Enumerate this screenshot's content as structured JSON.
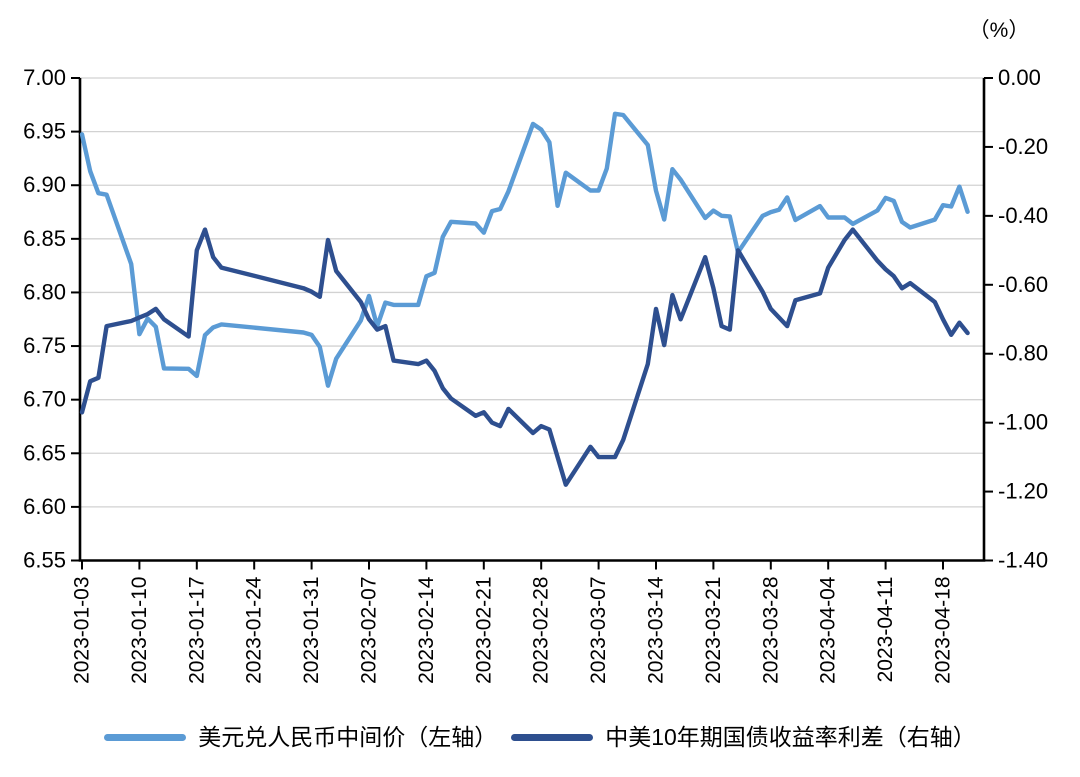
{
  "header": {
    "title": "",
    "unit_label": "（%）"
  },
  "legend": {
    "items": [
      {
        "label": "美元兑人民币中间价（左轴）",
        "color": "#5B9BD5"
      },
      {
        "label": "中美10年期国债收益率利差（右轴）",
        "color": "#2E4F8F"
      }
    ]
  },
  "chart_data": {
    "type": "line",
    "title": "",
    "xlabel": "",
    "ylabel_left": "",
    "ylabel_right": "（%）",
    "grid": true,
    "legend_position": "bottom",
    "x": [
      "2023-01-03",
      "2023-01-04",
      "2023-01-05",
      "2023-01-06",
      "2023-01-09",
      "2023-01-10",
      "2023-01-11",
      "2023-01-12",
      "2023-01-13",
      "2023-01-16",
      "2023-01-17",
      "2023-01-18",
      "2023-01-19",
      "2023-01-20",
      "2023-01-30",
      "2023-01-31",
      "2023-02-01",
      "2023-02-02",
      "2023-02-03",
      "2023-02-06",
      "2023-02-07",
      "2023-02-08",
      "2023-02-09",
      "2023-02-10",
      "2023-02-13",
      "2023-02-14",
      "2023-02-15",
      "2023-02-16",
      "2023-02-17",
      "2023-02-20",
      "2023-02-21",
      "2023-02-22",
      "2023-02-23",
      "2023-02-24",
      "2023-02-27",
      "2023-02-28",
      "2023-03-01",
      "2023-03-02",
      "2023-03-03",
      "2023-03-06",
      "2023-03-07",
      "2023-03-08",
      "2023-03-09",
      "2023-03-10",
      "2023-03-13",
      "2023-03-14",
      "2023-03-15",
      "2023-03-16",
      "2023-03-17",
      "2023-03-20",
      "2023-03-21",
      "2023-03-22",
      "2023-03-23",
      "2023-03-24",
      "2023-03-27",
      "2023-03-28",
      "2023-03-29",
      "2023-03-30",
      "2023-03-31",
      "2023-04-03",
      "2023-04-04",
      "2023-04-06",
      "2023-04-07",
      "2023-04-10",
      "2023-04-11",
      "2023-04-12",
      "2023-04-13",
      "2023-04-14",
      "2023-04-17",
      "2023-04-18",
      "2023-04-19",
      "2023-04-20",
      "2023-04-21"
    ],
    "series": [
      {
        "name": "美元兑人民币中间价（左轴）",
        "axis": "left",
        "color": "#5B9BD5",
        "values": [
          6.9475,
          6.9131,
          6.8926,
          6.8912,
          6.8265,
          6.7611,
          6.7756,
          6.768,
          6.7292,
          6.7288,
          6.7222,
          6.7602,
          6.7674,
          6.7702,
          6.7626,
          6.7604,
          6.7492,
          6.713,
          6.7382,
          6.7737,
          6.7967,
          6.7685,
          6.7905,
          6.7884,
          6.7884,
          6.8151,
          6.8183,
          6.8519,
          6.8659,
          6.8643,
          6.8557,
          6.8759,
          6.8778,
          6.8942,
          6.9572,
          6.9519,
          6.94,
          6.8808,
          6.9117,
          6.8951,
          6.8951,
          6.9156,
          6.9666,
          6.9655,
          6.9375,
          6.8949,
          6.868,
          6.9149,
          6.9052,
          6.8694,
          6.8763,
          6.8715,
          6.8709,
          6.8374,
          6.8714,
          6.8749,
          6.8771,
          6.8886,
          6.8676,
          6.8805,
          6.8699,
          6.8699,
          6.8639,
          6.8764,
          6.8882,
          6.8854,
          6.8658,
          6.8606,
          6.8679,
          6.8814,
          6.8802,
          6.8987,
          6.8752
        ]
      },
      {
        "name": "中美10年期国债收益率利差（右轴）",
        "axis": "right",
        "color": "#2E4F8F",
        "values": [
          -0.97,
          -0.88,
          -0.87,
          -0.72,
          -0.705,
          -0.695,
          -0.685,
          -0.67,
          -0.7,
          -0.75,
          -0.5,
          -0.44,
          -0.52,
          -0.55,
          -0.61,
          -0.62,
          -0.635,
          -0.47,
          -0.56,
          -0.65,
          -0.7,
          -0.73,
          -0.72,
          -0.82,
          -0.83,
          -0.82,
          -0.85,
          -0.9,
          -0.93,
          -0.98,
          -0.97,
          -1.0,
          -1.01,
          -0.96,
          -1.03,
          -1.01,
          -1.02,
          -1.1,
          -1.18,
          -1.07,
          -1.1,
          -1.1,
          -1.1,
          -1.05,
          -0.83,
          -0.67,
          -0.775,
          -0.63,
          -0.7,
          -0.52,
          -0.61,
          -0.72,
          -0.73,
          -0.5,
          -0.62,
          -0.67,
          -0.695,
          -0.72,
          -0.645,
          -0.625,
          -0.55,
          -0.47,
          -0.44,
          -0.53,
          -0.555,
          -0.575,
          -0.61,
          -0.595,
          -0.65,
          -0.7,
          -0.745,
          -0.71,
          -0.74
        ]
      }
    ],
    "left_axis": {
      "min": 6.55,
      "max": 7.0,
      "step": 0.05,
      "ticks": [
        "7.00",
        "6.95",
        "6.90",
        "6.85",
        "6.80",
        "6.75",
        "6.70",
        "6.65",
        "6.60",
        "6.55"
      ]
    },
    "right_axis": {
      "min": -1.4,
      "max": 0.0,
      "step": 0.2,
      "unit": "（%）",
      "ticks": [
        "0.00",
        "-0.20",
        "-0.40",
        "-0.60",
        "-0.80",
        "-1.00",
        "-1.20",
        "-1.40"
      ]
    },
    "x_ticks": [
      "2023-01-03",
      "2023-01-10",
      "2023-01-17",
      "2023-01-24",
      "2023-01-31",
      "2023-02-07",
      "2023-02-14",
      "2023-02-21",
      "2023-02-28",
      "2023-03-07",
      "2023-03-14",
      "2023-03-21",
      "2023-03-28",
      "2023-04-04",
      "2023-04-11",
      "2023-04-18"
    ]
  }
}
